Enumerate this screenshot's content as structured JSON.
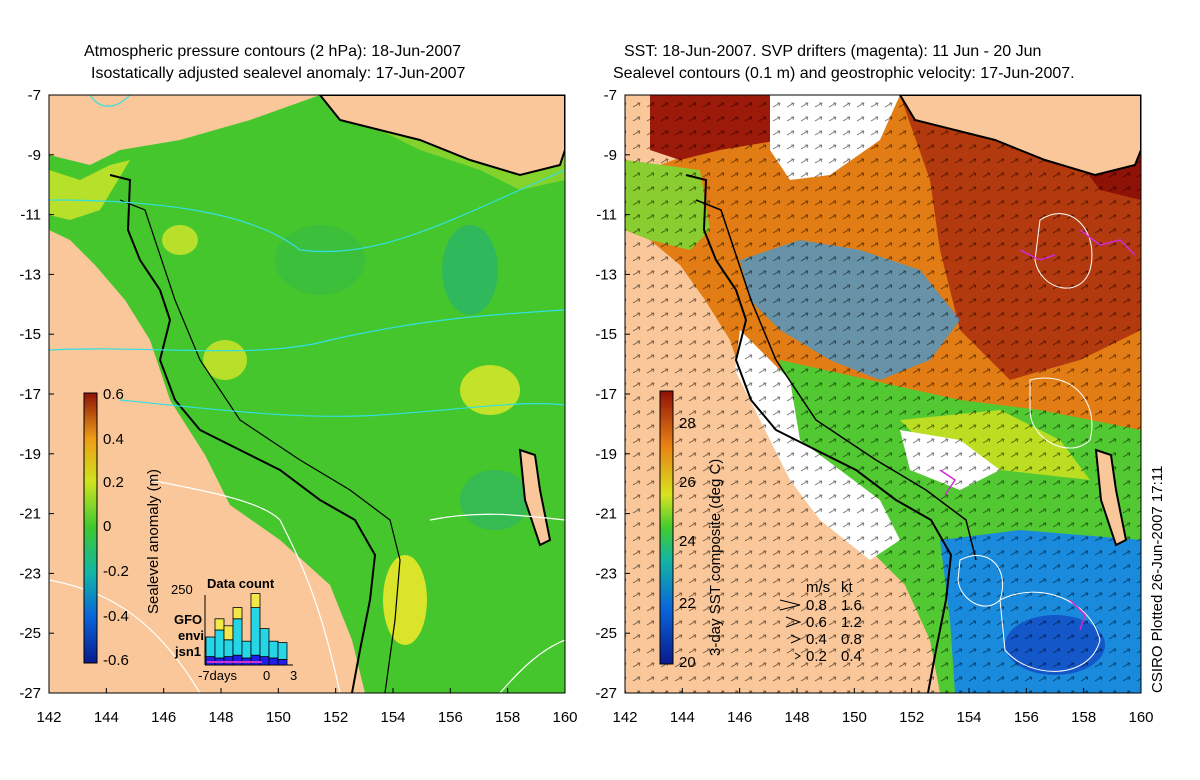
{
  "left_panel": {
    "title_line1": "Atmospheric pressure contours (2 hPa): 18-Jun-2007",
    "title_line2": "Isostatically adjusted sealevel anomaly: 17-Jun-2007",
    "colorbar_label": "Sealevel anomaly (m)",
    "colorbar_ticks": [
      "0.6",
      "0.4",
      "0.2",
      "0",
      "-0.2",
      "-0.4",
      "-0.6"
    ],
    "inset": {
      "title": "Data count",
      "ymax_label": "250",
      "legend": [
        {
          "name": "GFO",
          "color": "#f2e84a"
        },
        {
          "name": "envi",
          "color": "#27d6e6"
        },
        {
          "name": "jsn1",
          "color": "#1e1ee6"
        }
      ],
      "x_labels": [
        "-7days",
        "0",
        "3"
      ],
      "bars": [
        {
          "jsn1": 30,
          "envi": 70,
          "gfo": 0
        },
        {
          "jsn1": 25,
          "envi": 100,
          "gfo": 40
        },
        {
          "jsn1": 30,
          "envi": 60,
          "gfo": 50
        },
        {
          "jsn1": 35,
          "envi": 130,
          "gfo": 40
        },
        {
          "jsn1": 25,
          "envi": 60,
          "gfo": 0
        },
        {
          "jsn1": 35,
          "envi": 170,
          "gfo": 50
        },
        {
          "jsn1": 30,
          "envi": 100,
          "gfo": 0
        },
        {
          "jsn1": 25,
          "envi": 60,
          "gfo": 0
        },
        {
          "jsn1": 20,
          "envi": 60,
          "gfo": 0
        }
      ]
    }
  },
  "right_panel": {
    "title_line1": "SST: 18-Jun-2007. SVP drifters (magenta): 11 Jun - 20 Jun",
    "title_line2": "Sealevel contours (0.1 m) and geostrophic velocity: 17-Jun-2007.",
    "colorbar_label": "3-day SST composite (deg C)",
    "colorbar_ticks": [
      "28",
      "26",
      "24",
      "22",
      "20"
    ],
    "velocity_legend": {
      "header": [
        "m/s",
        "kt"
      ],
      "rows": [
        [
          "0.8",
          "1.6"
        ],
        [
          "0.6",
          "1.2"
        ],
        [
          "0.4",
          "0.8"
        ],
        [
          "0.2",
          "0.4"
        ]
      ]
    },
    "side_note": "CSIRO Plotted 26-Jun-2007 17:11"
  },
  "axes": {
    "x_ticks": [
      "142",
      "144",
      "146",
      "148",
      "150",
      "152",
      "154",
      "156",
      "158",
      "160"
    ],
    "y_ticks": [
      "-7",
      "-9",
      "-11",
      "-13",
      "-15",
      "-17",
      "-19",
      "-21",
      "-23",
      "-25",
      "-27"
    ]
  },
  "colors": {
    "land": "#f9c79a",
    "sla_green": "#44cc2e",
    "sst_orange": "#e07a10",
    "sst_red": "#9b1a0a",
    "contour_cyan": "#33e0e0",
    "drifter_magenta": "#d22bd2"
  }
}
